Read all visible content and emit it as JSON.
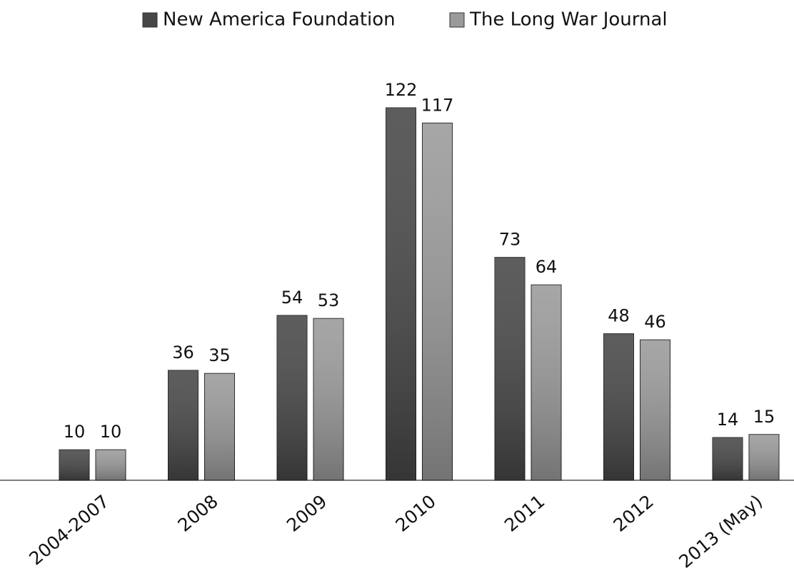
{
  "chart_data": {
    "type": "bar",
    "categories": [
      "2004-2007",
      "2008",
      "2009",
      "2010",
      "2011",
      "2012",
      "2013 (May)"
    ],
    "series": [
      {
        "name": "New America Foundation",
        "color": "#474747",
        "values": [
          10,
          36,
          54,
          122,
          73,
          48,
          14
        ]
      },
      {
        "name": "The Long War Journal",
        "color": "#9a9a9a",
        "values": [
          10,
          35,
          53,
          117,
          64,
          46,
          15
        ]
      }
    ],
    "legend": "top"
  }
}
